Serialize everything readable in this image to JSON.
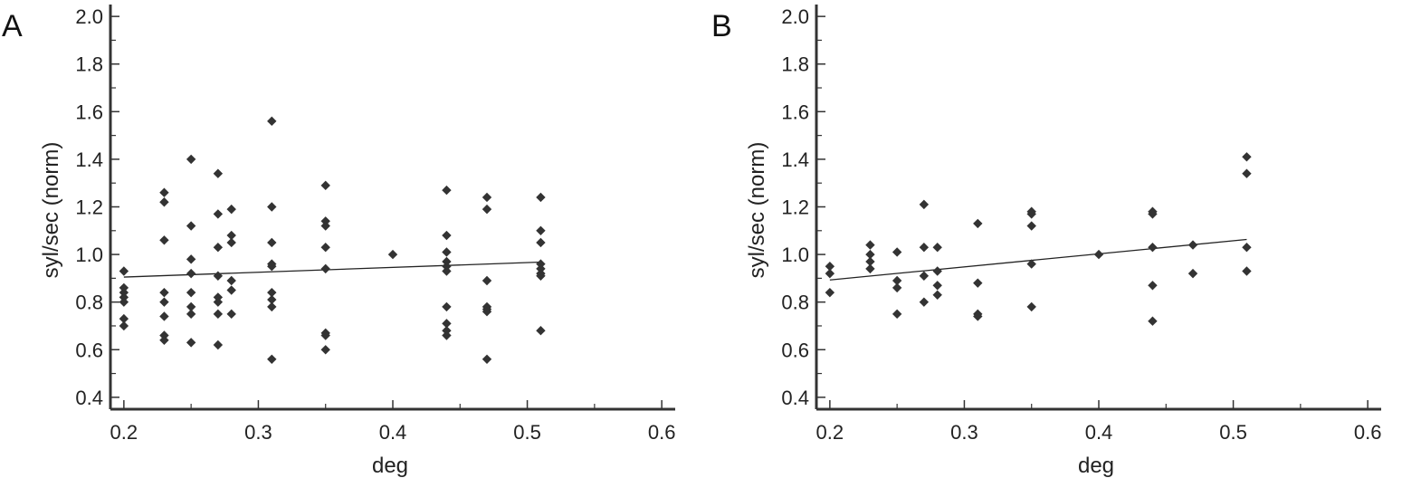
{
  "chart_data": [
    {
      "panel": "A",
      "type": "scatter",
      "xlabel": "deg",
      "ylabel": "syl/sec (norm)",
      "xlim": [
        0.19,
        0.61
      ],
      "ylim": [
        0.35,
        2.05
      ],
      "xticks": [
        "0.2",
        "0.3",
        "0.4",
        "0.5",
        "0.6"
      ],
      "yticks": [
        "0.4",
        "0.6",
        "0.8",
        "1.0",
        "1.2",
        "1.4",
        "1.6",
        "1.8",
        "2.0"
      ],
      "points": [
        [
          0.2,
          0.93
        ],
        [
          0.2,
          0.86
        ],
        [
          0.2,
          0.84
        ],
        [
          0.2,
          0.82
        ],
        [
          0.2,
          0.8
        ],
        [
          0.2,
          0.73
        ],
        [
          0.2,
          0.7
        ],
        [
          0.23,
          1.26
        ],
        [
          0.23,
          1.22
        ],
        [
          0.23,
          1.06
        ],
        [
          0.23,
          0.84
        ],
        [
          0.23,
          0.8
        ],
        [
          0.23,
          0.74
        ],
        [
          0.23,
          0.66
        ],
        [
          0.23,
          0.64
        ],
        [
          0.25,
          1.4
        ],
        [
          0.25,
          1.12
        ],
        [
          0.25,
          0.98
        ],
        [
          0.25,
          0.92
        ],
        [
          0.25,
          0.84
        ],
        [
          0.25,
          0.78
        ],
        [
          0.25,
          0.75
        ],
        [
          0.25,
          0.63
        ],
        [
          0.27,
          1.34
        ],
        [
          0.27,
          1.17
        ],
        [
          0.27,
          1.03
        ],
        [
          0.27,
          0.91
        ],
        [
          0.27,
          0.82
        ],
        [
          0.27,
          0.8
        ],
        [
          0.27,
          0.75
        ],
        [
          0.27,
          0.62
        ],
        [
          0.28,
          1.19
        ],
        [
          0.28,
          1.08
        ],
        [
          0.28,
          1.05
        ],
        [
          0.28,
          0.89
        ],
        [
          0.28,
          0.85
        ],
        [
          0.28,
          0.75
        ],
        [
          0.31,
          1.56
        ],
        [
          0.31,
          1.2
        ],
        [
          0.31,
          1.05
        ],
        [
          0.31,
          0.96
        ],
        [
          0.31,
          0.95
        ],
        [
          0.31,
          0.84
        ],
        [
          0.31,
          0.81
        ],
        [
          0.31,
          0.78
        ],
        [
          0.31,
          0.56
        ],
        [
          0.35,
          1.29
        ],
        [
          0.35,
          1.14
        ],
        [
          0.35,
          1.12
        ],
        [
          0.35,
          1.03
        ],
        [
          0.35,
          0.94
        ],
        [
          0.35,
          0.67
        ],
        [
          0.35,
          0.66
        ],
        [
          0.35,
          0.6
        ],
        [
          0.4,
          1.0
        ],
        [
          0.44,
          1.27
        ],
        [
          0.44,
          1.08
        ],
        [
          0.44,
          1.01
        ],
        [
          0.44,
          0.97
        ],
        [
          0.44,
          0.95
        ],
        [
          0.44,
          0.93
        ],
        [
          0.44,
          0.78
        ],
        [
          0.44,
          0.71
        ],
        [
          0.44,
          0.68
        ],
        [
          0.44,
          0.66
        ],
        [
          0.47,
          1.24
        ],
        [
          0.47,
          1.19
        ],
        [
          0.47,
          0.89
        ],
        [
          0.47,
          0.78
        ],
        [
          0.47,
          0.77
        ],
        [
          0.47,
          0.76
        ],
        [
          0.47,
          0.56
        ],
        [
          0.51,
          1.24
        ],
        [
          0.51,
          1.1
        ],
        [
          0.51,
          1.05
        ],
        [
          0.51,
          0.96
        ],
        [
          0.51,
          0.94
        ],
        [
          0.51,
          0.92
        ],
        [
          0.51,
          0.91
        ],
        [
          0.51,
          0.68
        ]
      ],
      "trendline": [
        [
          0.2,
          0.905
        ],
        [
          0.51,
          0.968
        ]
      ]
    },
    {
      "panel": "B",
      "type": "scatter",
      "xlabel": "deg",
      "ylabel": "syl/sec (norm)",
      "xlim": [
        0.19,
        0.61
      ],
      "ylim": [
        0.35,
        2.05
      ],
      "xticks": [
        "0.2",
        "0.3",
        "0.4",
        "0.5",
        "0.6"
      ],
      "yticks": [
        "0.4",
        "0.6",
        "0.8",
        "1.0",
        "1.2",
        "1.4",
        "1.6",
        "1.8",
        "2.0"
      ],
      "points": [
        [
          0.2,
          0.95
        ],
        [
          0.2,
          0.92
        ],
        [
          0.2,
          0.84
        ],
        [
          0.23,
          1.04
        ],
        [
          0.23,
          1.0
        ],
        [
          0.23,
          0.97
        ],
        [
          0.23,
          0.94
        ],
        [
          0.25,
          1.01
        ],
        [
          0.25,
          0.89
        ],
        [
          0.25,
          0.86
        ],
        [
          0.25,
          0.75
        ],
        [
          0.27,
          1.21
        ],
        [
          0.27,
          1.03
        ],
        [
          0.27,
          0.91
        ],
        [
          0.27,
          0.8
        ],
        [
          0.28,
          1.03
        ],
        [
          0.28,
          0.93
        ],
        [
          0.28,
          0.87
        ],
        [
          0.28,
          0.83
        ],
        [
          0.31,
          1.13
        ],
        [
          0.31,
          0.88
        ],
        [
          0.31,
          0.75
        ],
        [
          0.31,
          0.74
        ],
        [
          0.35,
          1.18
        ],
        [
          0.35,
          1.17
        ],
        [
          0.35,
          1.12
        ],
        [
          0.35,
          0.96
        ],
        [
          0.35,
          0.78
        ],
        [
          0.4,
          1.0
        ],
        [
          0.44,
          1.18
        ],
        [
          0.44,
          1.17
        ],
        [
          0.44,
          1.03
        ],
        [
          0.44,
          0.87
        ],
        [
          0.44,
          0.72
        ],
        [
          0.47,
          1.04
        ],
        [
          0.47,
          0.92
        ],
        [
          0.51,
          1.41
        ],
        [
          0.51,
          1.34
        ],
        [
          0.51,
          1.03
        ],
        [
          0.51,
          0.93
        ]
      ],
      "trendline": [
        [
          0.2,
          0.893
        ],
        [
          0.51,
          1.063
        ]
      ]
    }
  ],
  "panels": {
    "a": "A",
    "b": "B"
  }
}
